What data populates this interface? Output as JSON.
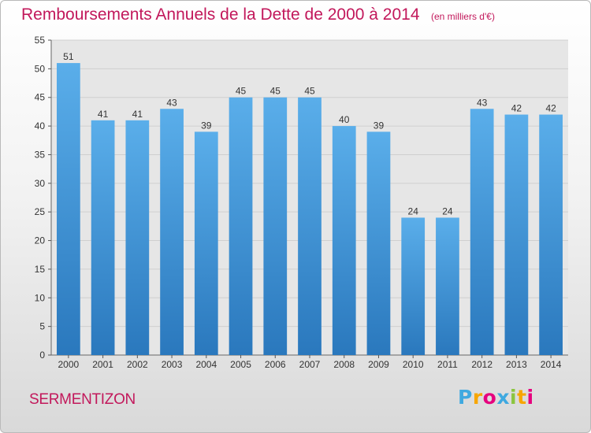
{
  "title": "Remboursements Annuels de la Dette de 2000 à 2014",
  "subtitle": "(en milliers d'€)",
  "commune": "SERMENTIZON",
  "logo": {
    "letters": [
      "P",
      "r",
      "o",
      "x",
      "i",
      "t",
      "i"
    ],
    "colors": [
      "#3fa9e0",
      "#f7a600",
      "#e6007e",
      "#3fa9e0",
      "#8bc53f",
      "#f7a600",
      "#e6007e"
    ]
  },
  "colors": {
    "bar": "#3f93d6",
    "title": "#c2185b"
  },
  "chart_data": {
    "type": "bar",
    "categories": [
      "2000",
      "2001",
      "2002",
      "2003",
      "2004",
      "2005",
      "2006",
      "2007",
      "2008",
      "2009",
      "2010",
      "2011",
      "2012",
      "2013",
      "2014"
    ],
    "values": [
      51,
      41,
      41,
      43,
      39,
      45,
      45,
      45,
      40,
      39,
      24,
      24,
      43,
      42,
      42
    ],
    "ylim": [
      0,
      55
    ],
    "yticks": [
      0,
      5,
      10,
      15,
      20,
      25,
      30,
      35,
      40,
      45,
      50,
      55
    ],
    "grid": true,
    "data_labels": true
  }
}
